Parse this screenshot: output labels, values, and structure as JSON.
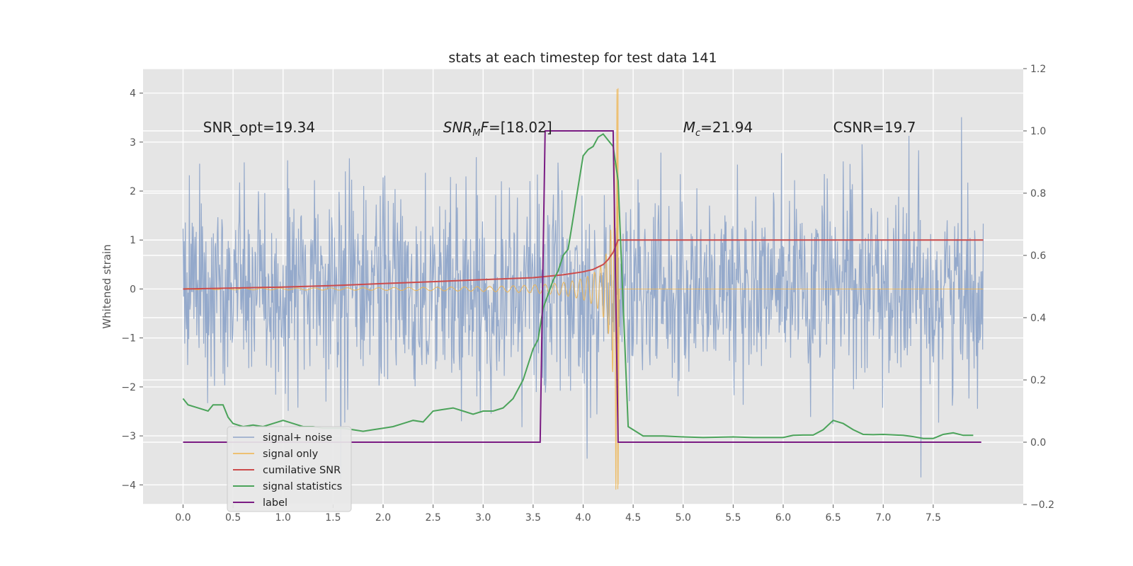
{
  "chart_data": {
    "type": "line",
    "title": "stats at each timestep for test data 141",
    "ylabel": "Whitened strain",
    "xlabel": "",
    "xlim": [
      -0.4,
      8.4
    ],
    "ylim": [
      -4.4,
      4.5
    ],
    "y2lim": [
      -0.2,
      1.2
    ],
    "x_ticks": [
      "0.0",
      "0.5",
      "1.0",
      "1.5",
      "2.0",
      "2.5",
      "3.0",
      "3.5",
      "4.0",
      "4.5",
      "5.0",
      "5.5",
      "6.0",
      "6.5",
      "7.0",
      "7.5"
    ],
    "x_tick_values": [
      0,
      0.5,
      1,
      1.5,
      2,
      2.5,
      3,
      3.5,
      4,
      4.5,
      5,
      5.5,
      6,
      6.5,
      7,
      7.5
    ],
    "y_ticks": [
      "4",
      "3",
      "2",
      "1",
      "0",
      "−1",
      "−2",
      "−3",
      "−4"
    ],
    "y_tick_values": [
      4,
      3,
      2,
      1,
      0,
      -1,
      -2,
      -3,
      -4
    ],
    "y2_ticks": [
      "1.2",
      "1.0",
      "0.8",
      "0.6",
      "0.4",
      "0.2",
      "0.0",
      "−0.2"
    ],
    "y2_tick_values": [
      1.2,
      1.0,
      0.8,
      0.6,
      0.4,
      0.2,
      0.0,
      -0.2
    ],
    "grid": true,
    "legend_position": "lower-left",
    "annotations": [
      {
        "id": "snr-opt",
        "text": "SNR_opt=19.34",
        "x": 0.2,
        "y": 3.3
      },
      {
        "id": "snr-mf",
        "text": "SNR_MF=[18.02]",
        "x": 2.6,
        "y": 3.3
      },
      {
        "id": "chirp-mass",
        "text": "M_c=21.94",
        "x": 5.0,
        "y": 3.3
      },
      {
        "id": "csnr",
        "text": "CSNR=19.7",
        "x": 6.5,
        "y": 3.3
      }
    ],
    "series": [
      {
        "name": "signal+ noise",
        "color": "#8fa5c9",
        "axis": "left",
        "kind": "noise",
        "x_range": [
          0,
          8
        ],
        "amplitude_envelope": 4.0
      },
      {
        "name": "signal only",
        "color": "#f0b44c",
        "axis": "left",
        "kind": "chirp",
        "x_range": [
          0,
          4.35
        ],
        "merger_x": 4.35,
        "peak_amplitude": 4.1
      },
      {
        "name": "cumilative SNR",
        "color": "#cc4b4b",
        "axis": "left",
        "x": [
          0,
          0.5,
          1.0,
          1.5,
          2.0,
          2.5,
          3.0,
          3.5,
          3.8,
          4.0,
          4.1,
          4.2,
          4.25,
          4.3,
          4.35,
          8.0
        ],
        "y": [
          0,
          0.02,
          0.04,
          0.07,
          0.11,
          0.15,
          0.19,
          0.23,
          0.29,
          0.35,
          0.4,
          0.5,
          0.6,
          0.75,
          1.0,
          1.0
        ]
      },
      {
        "name": "signal statistics",
        "color": "#4ba35a",
        "axis": "right",
        "x": [
          0,
          0.05,
          0.15,
          0.25,
          0.3,
          0.4,
          0.45,
          0.5,
          0.6,
          0.7,
          0.8,
          0.9,
          1.0,
          1.1,
          1.2,
          1.3,
          1.4,
          1.5,
          1.6,
          1.7,
          1.8,
          1.9,
          2.0,
          2.1,
          2.2,
          2.3,
          2.4,
          2.5,
          2.6,
          2.7,
          2.8,
          2.9,
          3.0,
          3.1,
          3.2,
          3.3,
          3.4,
          3.5,
          3.55,
          3.6,
          3.7,
          3.75,
          3.8,
          3.85,
          3.9,
          3.95,
          4.0,
          4.05,
          4.1,
          4.15,
          4.2,
          4.25,
          4.3,
          4.35,
          4.45,
          4.5,
          4.6,
          4.7,
          4.8,
          5.0,
          5.2,
          5.5,
          5.7,
          6.0,
          6.1,
          6.2,
          6.3,
          6.4,
          6.5,
          6.6,
          6.7,
          6.8,
          6.9,
          7.0,
          7.2,
          7.3,
          7.4,
          7.5,
          7.6,
          7.7,
          7.8,
          7.9
        ],
        "y": [
          0.14,
          0.12,
          0.11,
          0.1,
          0.12,
          0.12,
          0.08,
          0.06,
          0.05,
          0.055,
          0.05,
          0.06,
          0.07,
          0.06,
          0.05,
          0.05,
          0.045,
          0.045,
          0.045,
          0.04,
          0.035,
          0.04,
          0.045,
          0.05,
          0.06,
          0.07,
          0.065,
          0.1,
          0.105,
          0.11,
          0.1,
          0.09,
          0.1,
          0.1,
          0.11,
          0.14,
          0.2,
          0.3,
          0.33,
          0.43,
          0.52,
          0.55,
          0.6,
          0.62,
          0.72,
          0.82,
          0.92,
          0.94,
          0.95,
          0.98,
          0.99,
          0.97,
          0.95,
          0.84,
          0.05,
          0.04,
          0.02,
          0.02,
          0.02,
          0.017,
          0.015,
          0.017,
          0.015,
          0.015,
          0.022,
          0.023,
          0.023,
          0.04,
          0.07,
          0.06,
          0.04,
          0.025,
          0.024,
          0.025,
          0.022,
          0.018,
          0.012,
          0.012,
          0.025,
          0.03,
          0.022,
          0.022
        ]
      },
      {
        "name": "label",
        "color": "#7a1c83",
        "axis": "right",
        "x": [
          0,
          3.57,
          3.62,
          4.3,
          4.35,
          7.98
        ],
        "y": [
          0,
          0,
          1,
          1,
          0,
          0
        ]
      }
    ]
  }
}
